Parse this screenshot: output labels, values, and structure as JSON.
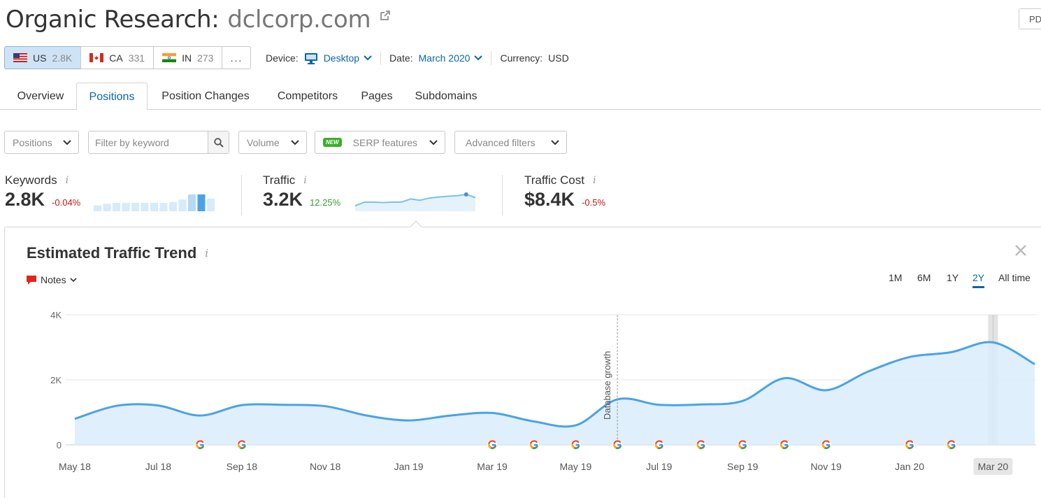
{
  "header": {
    "title": "Organic Research:",
    "domain": "dclcorp.com",
    "pdf_label": "PD"
  },
  "databases": [
    {
      "code": "US",
      "count": "2.8K",
      "active": true
    },
    {
      "code": "CA",
      "count": "331",
      "active": false
    },
    {
      "code": "IN",
      "count": "273",
      "active": false
    }
  ],
  "databases_more": "...",
  "params": {
    "device_label": "Device:",
    "device_value": "Desktop",
    "date_label": "Date:",
    "date_value": "March 2020",
    "currency_label": "Currency:",
    "currency_value": "USD"
  },
  "tabs": [
    {
      "label": "Overview"
    },
    {
      "label": "Positions"
    },
    {
      "label": "Position Changes"
    },
    {
      "label": "Competitors"
    },
    {
      "label": "Pages"
    },
    {
      "label": "Subdomains"
    }
  ],
  "active_tab": "Positions",
  "filters": {
    "positions": "Positions",
    "keyword_placeholder": "Filter by keyword",
    "volume": "Volume",
    "new_badge": "NEW",
    "serp": "SERP features",
    "advanced": "Advanced filters"
  },
  "metrics": {
    "keywords": {
      "label": "Keywords",
      "value": "2.8K",
      "change": "-0.04%"
    },
    "traffic": {
      "label": "Traffic",
      "value": "3.2K",
      "change": "12.25%"
    },
    "cost": {
      "label": "Traffic Cost",
      "value": "$8.4K",
      "change": "-0.5%"
    }
  },
  "info_glyph": "i",
  "panel": {
    "title": "Estimated Traffic Trend",
    "notes_label": "Notes",
    "ranges": [
      "1M",
      "6M",
      "1Y",
      "2Y",
      "All time"
    ],
    "active_range": "2Y"
  },
  "colors": {
    "accent": "#0a66a8",
    "line": "#4aa3e6",
    "area": "#d9ecfa",
    "negative": "#c4161c",
    "positive": "#3a9a3a"
  },
  "keywords_spark": [
    0.35,
    0.45,
    0.5,
    0.5,
    0.5,
    0.5,
    0.5,
    0.5,
    0.55,
    0.7,
    1.0,
    1.0,
    0.75
  ],
  "keywords_spark_highlight": [
    10,
    11
  ],
  "traffic_spark": [
    0.6,
    1.0,
    1.0,
    0.95,
    1.0,
    1.0,
    1.35,
    1.2,
    1.45,
    1.55,
    1.65,
    1.7,
    1.85,
    1.5
  ],
  "chart_data": {
    "type": "area",
    "ylim": [
      0,
      4000
    ],
    "yticks": [
      {
        "value": 0,
        "label": "0"
      },
      {
        "value": 2000,
        "label": "2K"
      },
      {
        "value": 4000,
        "label": "4K"
      }
    ],
    "xticks": [
      "May 18",
      "Jul 18",
      "Sep 18",
      "Nov 18",
      "Jan 19",
      "Mar 19",
      "May 19",
      "Jul 19",
      "Sep 19",
      "Nov 19",
      "Jan 20",
      "Mar 20"
    ],
    "highlight_tick": "Mar 20",
    "series": [
      {
        "values": [
          {
            "x": "May 18",
            "y": 800
          },
          {
            "x": "Jun 18",
            "y": 1200
          },
          {
            "x": "Jul 18",
            "y": 1210
          },
          {
            "x": "Aug 18",
            "y": 900
          },
          {
            "x": "Sep 18",
            "y": 1220
          },
          {
            "x": "Oct 18",
            "y": 1230
          },
          {
            "x": "Nov 18",
            "y": 1190
          },
          {
            "x": "Dec 18",
            "y": 900
          },
          {
            "x": "Jan 19",
            "y": 750
          },
          {
            "x": "Feb 19",
            "y": 900
          },
          {
            "x": "Mar 19",
            "y": 980
          },
          {
            "x": "Apr 19",
            "y": 720
          },
          {
            "x": "May 19",
            "y": 600
          },
          {
            "x": "Jun 19",
            "y": 1400
          },
          {
            "x": "Jul 19",
            "y": 1230
          },
          {
            "x": "Aug 19",
            "y": 1240
          },
          {
            "x": "Sep 19",
            "y": 1350
          },
          {
            "x": "Oct 19",
            "y": 2050
          },
          {
            "x": "Nov 19",
            "y": 1680
          },
          {
            "x": "Dec 19",
            "y": 2250
          },
          {
            "x": "Jan 20",
            "y": 2700
          },
          {
            "x": "Feb 20",
            "y": 2850
          },
          {
            "x": "Mar 20",
            "y": 3150
          },
          {
            "x": "Apr 20",
            "y": 2480
          }
        ]
      }
    ],
    "annotation": {
      "x": "Jun 19",
      "label": "Database growth"
    },
    "google_updates": [
      "Aug 18",
      "Sep 18",
      "Mar 19",
      "Apr 19",
      "May 19",
      "Jun 19",
      "Jul 19",
      "Aug 19",
      "Sep 19",
      "Oct 19",
      "Nov 19",
      "Jan 20",
      "Feb 20"
    ]
  }
}
